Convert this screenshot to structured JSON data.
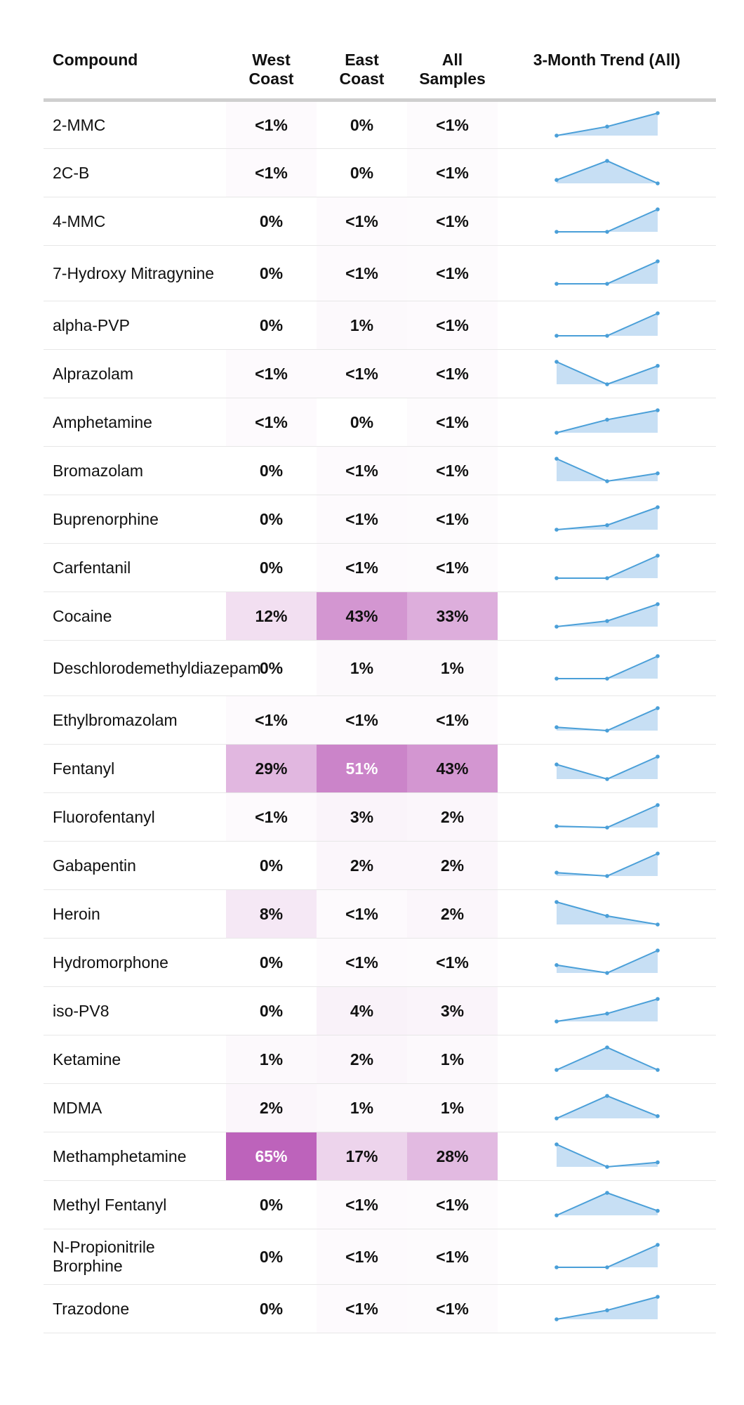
{
  "chart_data": {
    "type": "table",
    "columns": [
      "Compound",
      "West Coast",
      "East Coast",
      "All Samples",
      "3-Month Trend (All)"
    ],
    "value_columns": [
      "west",
      "east",
      "all"
    ],
    "heat_color": "#bd63bb",
    "trend_color": "#4a9fd8",
    "trend_fill": "#c7dff4",
    "rows": [
      {
        "compound": "2-MMC",
        "west": "<1%",
        "east": "0%",
        "all": "<1%",
        "west_v": 0.3,
        "east_v": 0.0,
        "all_v": 0.2,
        "trend": [
          0,
          0.4,
          1.0
        ]
      },
      {
        "compound": "2C-B",
        "west": "<1%",
        "east": "0%",
        "all": "<1%",
        "west_v": 0.3,
        "east_v": 0.0,
        "all_v": 0.2,
        "trend": [
          0.15,
          1.0,
          0
        ]
      },
      {
        "compound": "4-MMC",
        "west": "0%",
        "east": "<1%",
        "all": "<1%",
        "west_v": 0.0,
        "east_v": 0.3,
        "all_v": 0.2,
        "trend": [
          0,
          0,
          1.0
        ]
      },
      {
        "compound": "7-Hydroxy Mitragynine",
        "west": "0%",
        "east": "<1%",
        "all": "<1%",
        "west_v": 0.0,
        "east_v": 0.3,
        "all_v": 0.2,
        "trend": [
          0,
          0,
          1.0
        ]
      },
      {
        "compound": "alpha-PVP",
        "west": "0%",
        "east": "1%",
        "all": "<1%",
        "west_v": 0.0,
        "east_v": 1.0,
        "all_v": 0.5,
        "trend": [
          0,
          0,
          1.0
        ]
      },
      {
        "compound": "Alprazolam",
        "west": "<1%",
        "east": "<1%",
        "all": "<1%",
        "west_v": 0.3,
        "east_v": 0.3,
        "all_v": 0.3,
        "trend": [
          1.0,
          0,
          0.82
        ]
      },
      {
        "compound": "Amphetamine",
        "west": "<1%",
        "east": "0%",
        "all": "<1%",
        "west_v": 0.3,
        "east_v": 0.0,
        "all_v": 0.2,
        "trend": [
          0,
          0.58,
          1.0
        ]
      },
      {
        "compound": "Bromazolam",
        "west": "0%",
        "east": "<1%",
        "all": "<1%",
        "west_v": 0.0,
        "east_v": 0.3,
        "all_v": 0.2,
        "trend": [
          1.0,
          0,
          0.35
        ]
      },
      {
        "compound": "Buprenorphine",
        "west": "0%",
        "east": "<1%",
        "all": "<1%",
        "west_v": 0.0,
        "east_v": 0.3,
        "all_v": 0.2,
        "trend": [
          0,
          0.2,
          1.0
        ]
      },
      {
        "compound": "Carfentanil",
        "west": "0%",
        "east": "<1%",
        "all": "<1%",
        "west_v": 0.0,
        "east_v": 0.3,
        "all_v": 0.2,
        "trend": [
          0,
          0,
          1.0
        ]
      },
      {
        "compound": "Cocaine",
        "west": "12%",
        "east": "43%",
        "all": "33%",
        "west_v": 12,
        "east_v": 43,
        "all_v": 33,
        "trend": [
          0,
          0.25,
          1.0
        ]
      },
      {
        "compound": "Deschlorodemethyldiazepam",
        "west": "0%",
        "east": "1%",
        "all": "1%",
        "west_v": 0.0,
        "east_v": 1.0,
        "all_v": 1.0,
        "trend": [
          0,
          0,
          1.0
        ]
      },
      {
        "compound": "Ethylbromazolam",
        "west": "<1%",
        "east": "<1%",
        "all": "<1%",
        "west_v": 0.3,
        "east_v": 0.3,
        "all_v": 0.3,
        "trend": [
          0.15,
          0,
          1.0
        ]
      },
      {
        "compound": "Fentanyl",
        "west": "29%",
        "east": "51%",
        "all": "43%",
        "west_v": 29,
        "east_v": 51,
        "all_v": 43,
        "trend": [
          0.65,
          0,
          1.0
        ]
      },
      {
        "compound": "Fluorofentanyl",
        "west": "<1%",
        "east": "3%",
        "all": "2%",
        "west_v": 0.3,
        "east_v": 3,
        "all_v": 2,
        "trend": [
          0.06,
          0,
          1.0
        ]
      },
      {
        "compound": "Gabapentin",
        "west": "0%",
        "east": "2%",
        "all": "2%",
        "west_v": 0.0,
        "east_v": 2,
        "all_v": 2,
        "trend": [
          0.15,
          0,
          1.0
        ]
      },
      {
        "compound": "Heroin",
        "west": "8%",
        "east": "<1%",
        "all": "2%",
        "west_v": 8,
        "east_v": 0.3,
        "all_v": 2,
        "trend": [
          1.0,
          0.38,
          0
        ]
      },
      {
        "compound": "Hydromorphone",
        "west": "0%",
        "east": "<1%",
        "all": "<1%",
        "west_v": 0.0,
        "east_v": 0.3,
        "all_v": 0.2,
        "trend": [
          0.35,
          0,
          1.0
        ]
      },
      {
        "compound": "iso-PV8",
        "west": "0%",
        "east": "4%",
        "all": "3%",
        "west_v": 0.0,
        "east_v": 4,
        "all_v": 3,
        "trend": [
          0,
          0.35,
          1.0
        ]
      },
      {
        "compound": "Ketamine",
        "west": "1%",
        "east": "2%",
        "all": "1%",
        "west_v": 1,
        "east_v": 2,
        "all_v": 1,
        "trend": [
          0,
          1.0,
          0
        ]
      },
      {
        "compound": "MDMA",
        "west": "2%",
        "east": "1%",
        "all": "1%",
        "west_v": 2,
        "east_v": 1,
        "all_v": 1,
        "trend": [
          0,
          1.0,
          0.1
        ]
      },
      {
        "compound": "Methamphetamine",
        "west": "65%",
        "east": "17%",
        "all": "28%",
        "west_v": 65,
        "east_v": 17,
        "all_v": 28,
        "trend": [
          1.0,
          0,
          0.2
        ]
      },
      {
        "compound": "Methyl Fentanyl",
        "west": "0%",
        "east": "<1%",
        "all": "<1%",
        "west_v": 0.0,
        "east_v": 0.3,
        "all_v": 0.2,
        "trend": [
          0,
          1.0,
          0.2
        ]
      },
      {
        "compound": "N-Propionitrile Brorphine",
        "west": "0%",
        "east": "<1%",
        "all": "<1%",
        "west_v": 0.0,
        "east_v": 0.3,
        "all_v": 0.2,
        "trend": [
          0,
          0,
          1.0
        ]
      },
      {
        "compound": "Trazodone",
        "west": "0%",
        "east": "<1%",
        "all": "<1%",
        "west_v": 0.0,
        "east_v": 0.3,
        "all_v": 0.2,
        "trend": [
          0,
          0.4,
          1.0
        ]
      }
    ]
  }
}
